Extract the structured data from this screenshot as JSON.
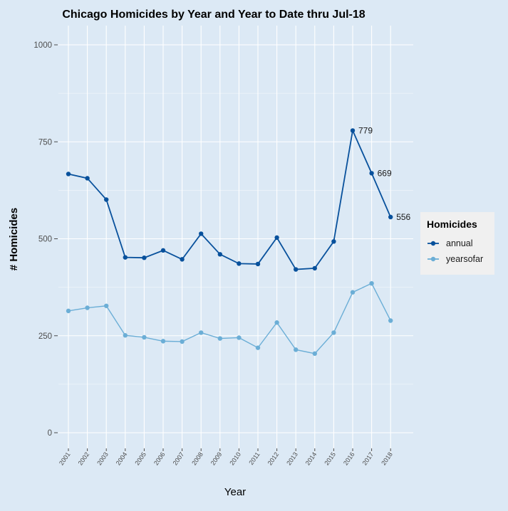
{
  "chart_data": {
    "type": "line",
    "title": "Chicago Homicides by Year and Year to Date thru Jul-18",
    "xlabel": "Year",
    "ylabel": "# Homicides",
    "ylim": [
      -10,
      1010
    ],
    "yticks": [
      0,
      250,
      500,
      750,
      1000
    ],
    "grid": true,
    "legend_position": "right",
    "legend_title": "Homicides",
    "categories": [
      "2001",
      "2002",
      "2003",
      "2004",
      "2005",
      "2006",
      "2007",
      "2008",
      "2009",
      "2010",
      "2011",
      "2012",
      "2013",
      "2014",
      "2015",
      "2016",
      "2017",
      "2018"
    ],
    "series": [
      {
        "name": "annual",
        "color": "#08519c",
        "values": [
          667,
          656,
          601,
          452,
          451,
          470,
          447,
          513,
          460,
          436,
          435,
          503,
          421,
          424,
          493,
          779,
          669,
          556
        ],
        "data_labels": {
          "2016": "779",
          "2017": "669",
          "2018": "556"
        }
      },
      {
        "name": "yearsofar",
        "color": "#6baed6",
        "values": [
          314,
          322,
          327,
          251,
          246,
          236,
          235,
          258,
          243,
          245,
          219,
          284,
          214,
          204,
          258,
          362,
          385,
          289
        ]
      }
    ]
  },
  "colors": {
    "background": "#dce9f5",
    "grid": "#ffffff",
    "legend_bg": "#f0f0f0"
  }
}
